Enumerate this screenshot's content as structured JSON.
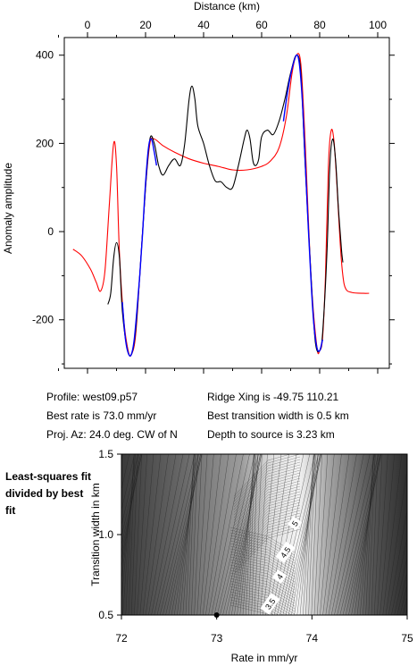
{
  "chart_data": [
    {
      "type": "line",
      "xlabel": "Distance (km)",
      "ylabel": "Anomaly amplitude",
      "xlim": [
        -8,
        104
      ],
      "ylim": [
        -310,
        440
      ],
      "xticks": [
        0,
        20,
        40,
        60,
        80,
        100
      ],
      "yticks": [
        400,
        200,
        0,
        -200
      ],
      "series": [
        {
          "color": "#ff0000",
          "points": [
            [
              -5,
              -40
            ],
            [
              -2,
              -55
            ],
            [
              1,
              -85
            ],
            [
              3,
              -115
            ],
            [
              4.5,
              -135
            ],
            [
              6,
              -90
            ],
            [
              7.5,
              60
            ],
            [
              9,
              200
            ],
            [
              10,
              150
            ],
            [
              11,
              -50
            ],
            [
              12.5,
              -200
            ],
            [
              14,
              -270
            ],
            [
              15,
              -280
            ],
            [
              16.5,
              -240
            ],
            [
              18,
              -100
            ],
            [
              20,
              100
            ],
            [
              21.5,
              200
            ],
            [
              23,
              210
            ],
            [
              26,
              195
            ],
            [
              30,
              180
            ],
            [
              35,
              165
            ],
            [
              40,
              155
            ],
            [
              45,
              148
            ],
            [
              50,
              140
            ],
            [
              55,
              140
            ],
            [
              60,
              148
            ],
            [
              63,
              160
            ],
            [
              66,
              190
            ],
            [
              68.5,
              260
            ],
            [
              70.5,
              360
            ],
            [
              72,
              400
            ],
            [
              73.5,
              380
            ],
            [
              75,
              200
            ],
            [
              77,
              -100
            ],
            [
              79,
              -260
            ],
            [
              80,
              -270
            ],
            [
              81,
              -240
            ],
            [
              82,
              -100
            ],
            [
              83,
              150
            ],
            [
              84,
              230
            ],
            [
              85,
              200
            ],
            [
              86,
              100
            ],
            [
              87,
              -20
            ],
            [
              88,
              -100
            ],
            [
              89,
              -130
            ],
            [
              91,
              -138
            ],
            [
              95,
              -140
            ],
            [
              97,
              -140
            ]
          ]
        },
        {
          "color": "#000000",
          "points": [
            [
              7,
              -165
            ],
            [
              8,
              -140
            ],
            [
              9,
              -60
            ],
            [
              10,
              -25
            ],
            [
              11,
              -60
            ],
            [
              12,
              -180
            ],
            [
              13.5,
              -260
            ],
            [
              15,
              -280
            ],
            [
              16.5,
              -230
            ],
            [
              18,
              -100
            ],
            [
              20,
              100
            ],
            [
              21.5,
              210
            ],
            [
              23,
              200
            ],
            [
              24.5,
              150
            ],
            [
              26,
              128
            ],
            [
              28,
              150
            ],
            [
              30,
              165
            ],
            [
              32,
              150
            ],
            [
              33.5,
              200
            ],
            [
              35,
              300
            ],
            [
              36,
              330
            ],
            [
              37,
              300
            ],
            [
              38,
              240
            ],
            [
              40,
              200
            ],
            [
              42,
              150
            ],
            [
              44,
              115
            ],
            [
              46,
              113
            ],
            [
              48,
              100
            ],
            [
              50,
              100
            ],
            [
              52,
              150
            ],
            [
              54,
              210
            ],
            [
              55,
              230
            ],
            [
              56,
              210
            ],
            [
              57,
              160
            ],
            [
              58,
              150
            ],
            [
              59,
              165
            ],
            [
              60,
              215
            ],
            [
              62,
              230
            ],
            [
              64,
              220
            ],
            [
              66,
              250
            ],
            [
              68,
              300
            ],
            [
              70,
              360
            ],
            [
              72,
              400
            ],
            [
              73.5,
              360
            ],
            [
              75,
              150
            ],
            [
              77,
              -100
            ],
            [
              78.5,
              -250
            ],
            [
              80,
              -270
            ],
            [
              81,
              -230
            ],
            [
              82.5,
              -50
            ],
            [
              83.5,
              150
            ],
            [
              84.5,
              210
            ],
            [
              85.5,
              160
            ],
            [
              86.5,
              50
            ],
            [
              87.5,
              -40
            ],
            [
              88,
              -70
            ]
          ]
        },
        {
          "color": "#0000ff",
          "points": [
            [
              12,
              -160
            ],
            [
              13,
              -240
            ],
            [
              14,
              -275
            ],
            [
              15,
              -280
            ],
            [
              16,
              -250
            ],
            [
              17,
              -180
            ],
            [
              18,
              -100
            ],
            [
              19,
              0
            ],
            [
              20,
              110
            ],
            [
              21,
              190
            ],
            [
              22,
              210
            ],
            [
              23,
              180
            ],
            [
              23.8,
              150
            ]
          ]
        },
        {
          "color": "#0000ff",
          "points": [
            [
              67.5,
              250
            ],
            [
              69,
              320
            ],
            [
              70.5,
              370
            ],
            [
              72,
              400
            ],
            [
              73,
              380
            ],
            [
              74,
              300
            ],
            [
              75,
              160
            ],
            [
              76,
              20
            ],
            [
              77,
              -110
            ],
            [
              78,
              -210
            ],
            [
              79,
              -262
            ],
            [
              80,
              -270
            ],
            [
              81,
              -245
            ]
          ]
        }
      ]
    },
    {
      "type": "heatmap",
      "xlabel": "Rate in mm/yr",
      "ylabel": "Transition width in km",
      "xlim": [
        72,
        75
      ],
      "ylim": [
        0.5,
        1.5
      ],
      "xticks": [
        72,
        73,
        74,
        75
      ],
      "yticks": [
        0.5,
        1.0,
        1.5
      ],
      "contour_labels": [
        {
          "text": "5",
          "x": 73.82,
          "y": 1.07
        },
        {
          "text": "4.5",
          "x": 73.72,
          "y": 0.89
        },
        {
          "text": "4",
          "x": 73.66,
          "y": 0.74
        },
        {
          "text": "3.5",
          "x": 73.56,
          "y": 0.57
        }
      ],
      "best_fit": {
        "x": 73.0,
        "y": 0.5
      }
    }
  ],
  "info": {
    "profile": "Profile: west09.p57",
    "best_rate": "Best rate is 73.0 mm/yr",
    "proj_az": "Proj. Az: 24.0 deg. CW of N",
    "ridge_xing": "Ridge Xing is -49.75 110.21",
    "best_width": "Best transition width is 0.5 km",
    "depth": "Depth to source is   3.23 km"
  },
  "side_label": "Least-squares fit divided by best fit"
}
